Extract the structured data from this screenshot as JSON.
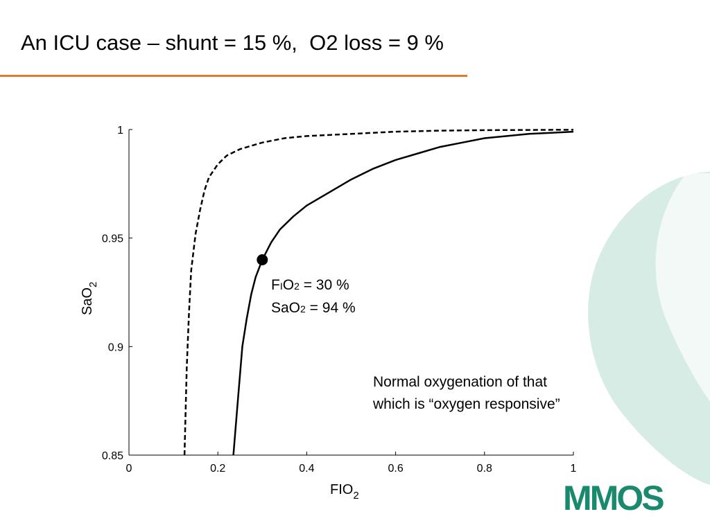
{
  "slide": {
    "title": "An ICU case – shunt = 15 %,  O2 loss = 9 %",
    "accent_color": "#e8772e",
    "decor_color": "#d6ece5"
  },
  "chart_data": {
    "type": "line",
    "xlabel_main": "FIO",
    "xlabel_sub": "2",
    "ylabel_main": "SaO",
    "ylabel_sub": "2",
    "xlim": [
      0,
      1
    ],
    "ylim": [
      0.85,
      1
    ],
    "xticks": [
      0,
      0.2,
      0.4,
      0.6,
      0.8,
      1
    ],
    "xtick_labels": [
      "0",
      "0.2",
      "0.4",
      "0.6",
      "0.8",
      "1"
    ],
    "yticks": [
      0.85,
      0.9,
      0.95,
      1
    ],
    "ytick_labels": [
      "0.85",
      "0.9",
      "0.95",
      "1"
    ],
    "grid": false,
    "series": [
      {
        "style": "dashed",
        "x": [
          0.125,
          0.13,
          0.135,
          0.14,
          0.15,
          0.16,
          0.17,
          0.18,
          0.2,
          0.22,
          0.25,
          0.3,
          0.35,
          0.4,
          0.5,
          0.6,
          0.7,
          0.8,
          0.9,
          1.0
        ],
        "y": [
          0.85,
          0.89,
          0.915,
          0.935,
          0.952,
          0.963,
          0.972,
          0.978,
          0.984,
          0.988,
          0.991,
          0.994,
          0.996,
          0.997,
          0.998,
          0.999,
          0.9995,
          0.9997,
          0.9998,
          0.9999
        ]
      },
      {
        "style": "solid",
        "x": [
          0.235,
          0.245,
          0.255,
          0.265,
          0.275,
          0.285,
          0.3,
          0.32,
          0.34,
          0.37,
          0.4,
          0.45,
          0.5,
          0.55,
          0.6,
          0.65,
          0.7,
          0.75,
          0.8,
          0.85,
          0.9,
          0.95,
          1.0
        ],
        "y": [
          0.85,
          0.875,
          0.9,
          0.913,
          0.924,
          0.932,
          0.94,
          0.948,
          0.954,
          0.96,
          0.965,
          0.971,
          0.977,
          0.982,
          0.986,
          0.989,
          0.992,
          0.994,
          0.996,
          0.997,
          0.998,
          0.9985,
          0.999
        ]
      }
    ],
    "marker": {
      "x": 0.3,
      "y": 0.94
    }
  },
  "annotations": {
    "point_line1_a": "F",
    "point_line1_b": "I",
    "point_line1_c": "O",
    "point_line1_d": "2",
    "point_line1_e": " = 30 %",
    "point_line2_a": "SaO",
    "point_line2_b": "2",
    "point_line2_c": " = 94 %",
    "note_line1": "Normal oxygenation of that",
    "note_line2": "which is “oxygen responsive”"
  },
  "logo": {
    "text": "MMOS",
    "color": "#1a8a6e"
  }
}
